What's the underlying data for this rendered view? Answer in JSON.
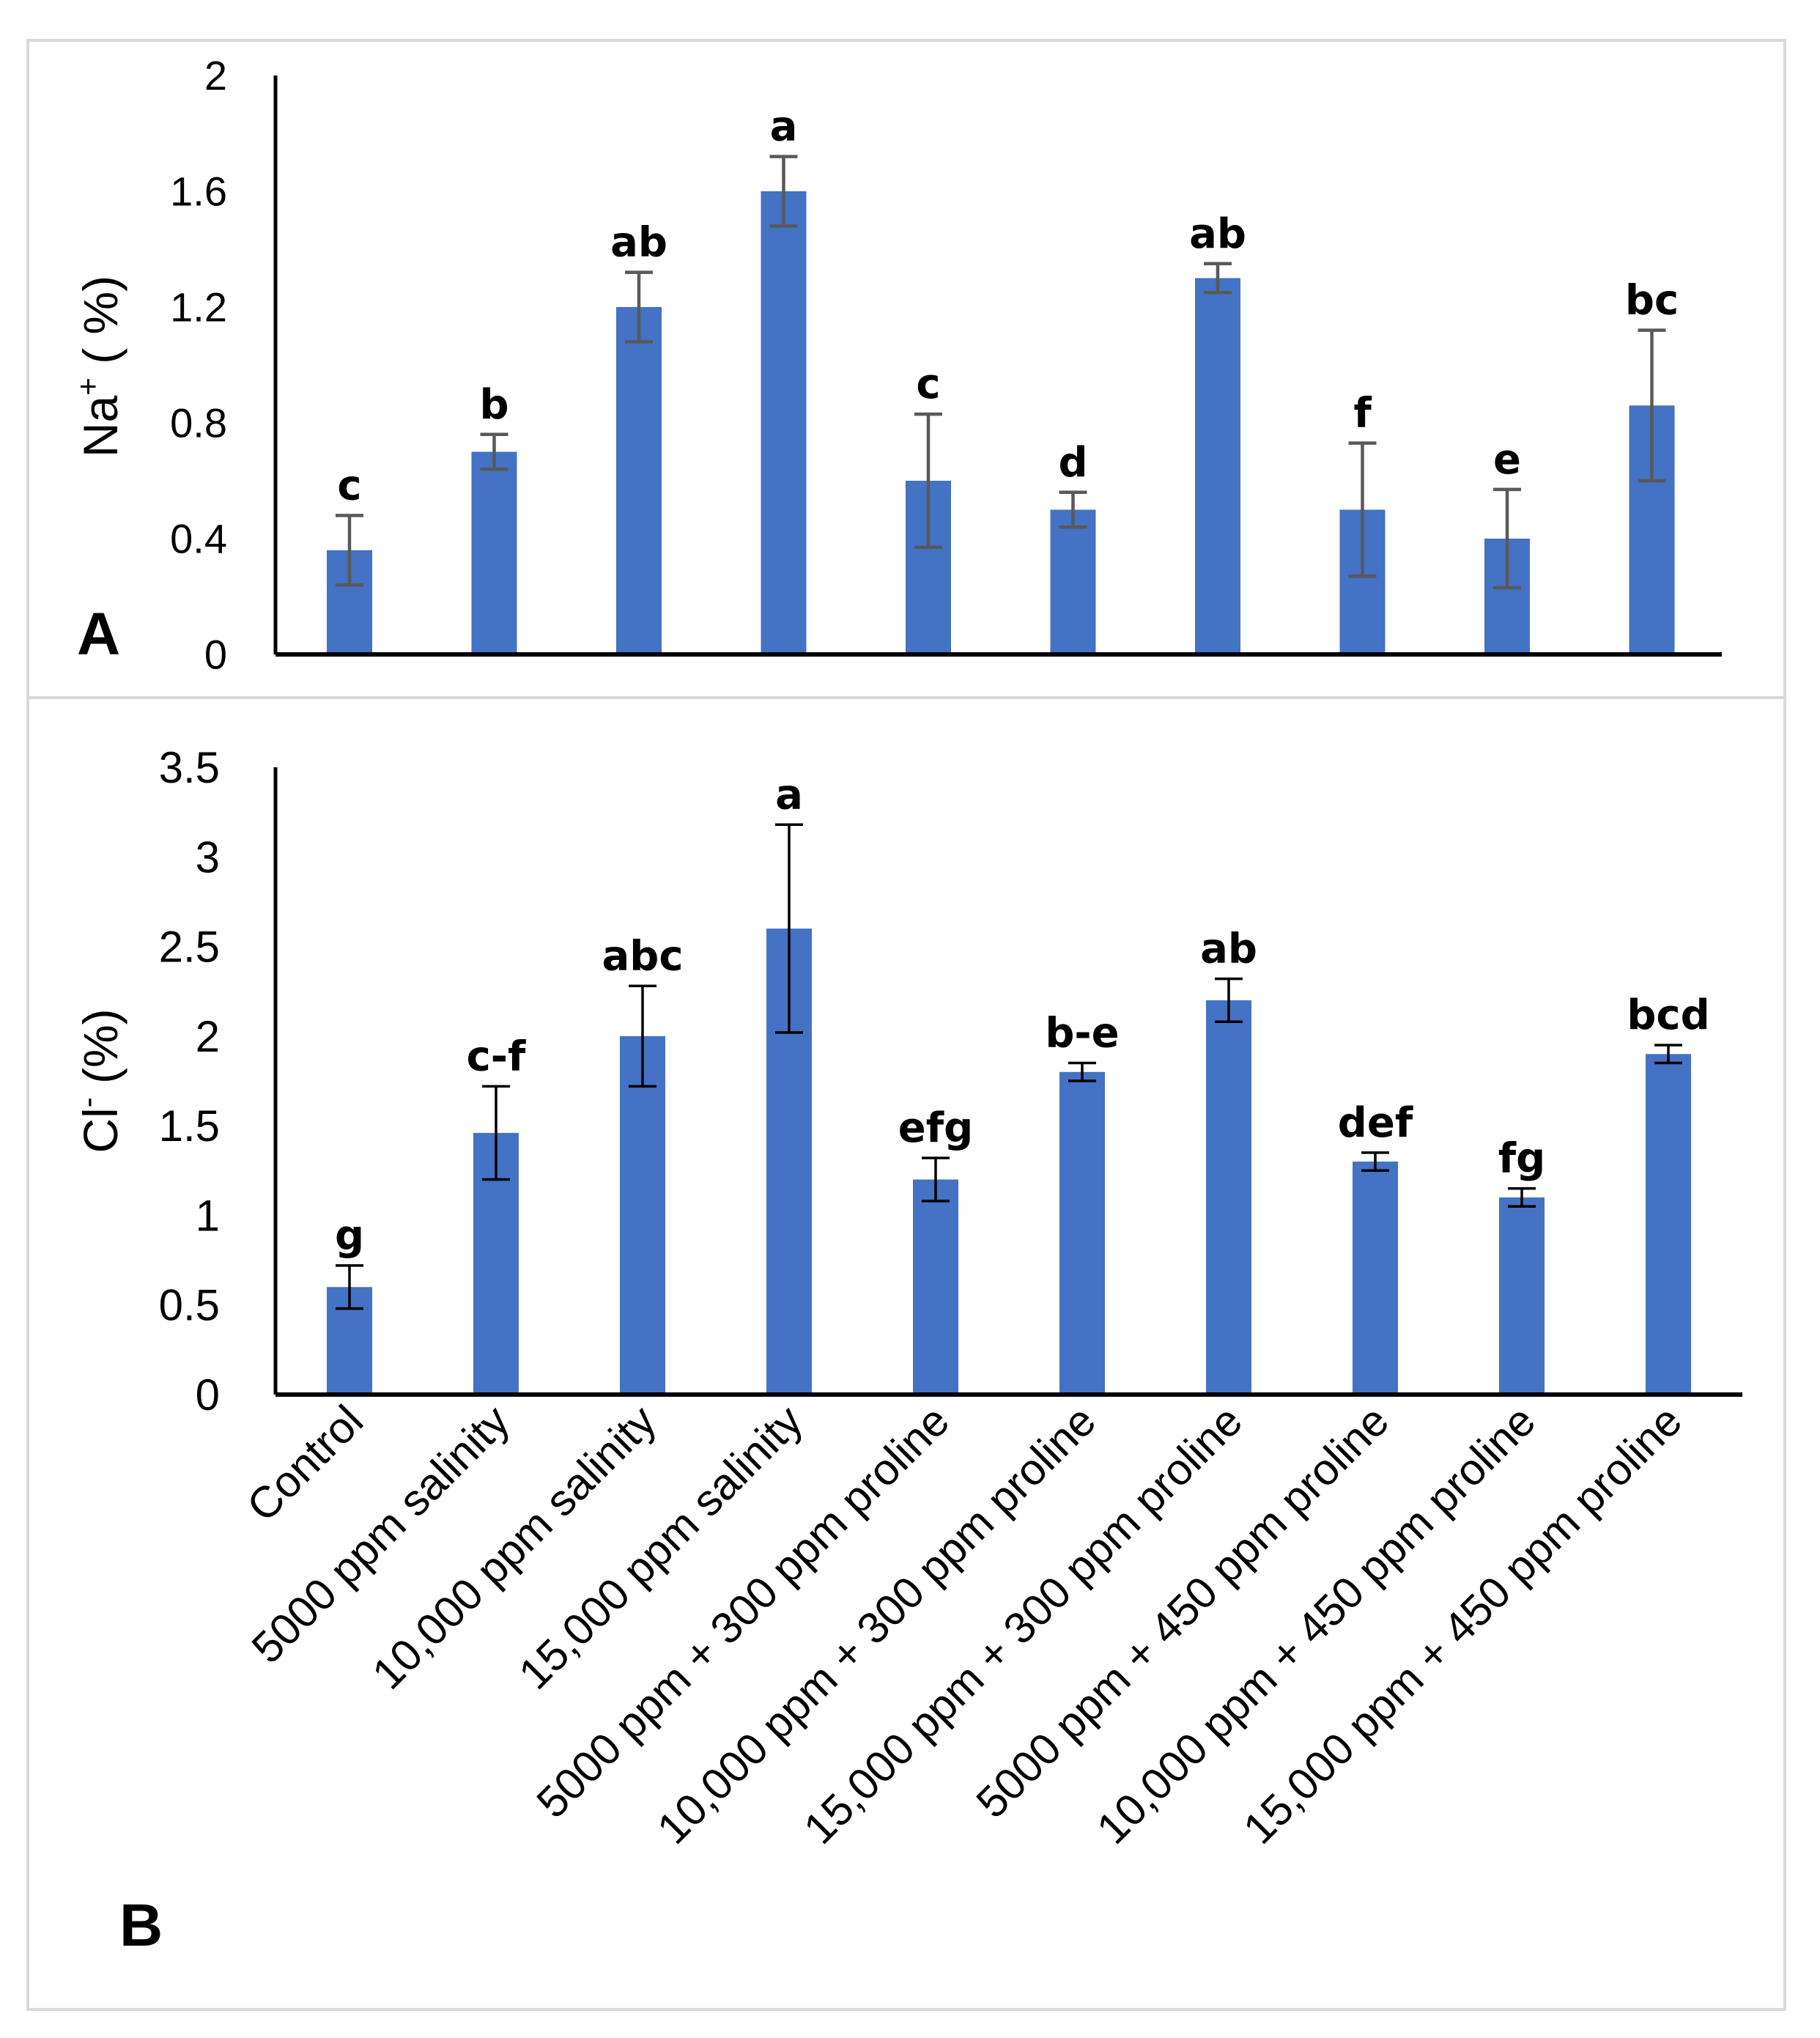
{
  "chart_data": [
    {
      "type": "bar",
      "panel_label": "A",
      "title": "",
      "ylabel_main": "Na",
      "ylabel_sup": "+",
      "ylabel_rest": " ( %)",
      "ylim": [
        0,
        2
      ],
      "yticks": [
        "0",
        "0.4",
        "0.8",
        "1.2",
        "1.6",
        "2"
      ],
      "ytick_values": [
        0,
        0.4,
        0.8,
        1.2,
        1.6,
        2
      ],
      "bar_color": "#4472C4",
      "error_color": "#595959",
      "values": [
        0.36,
        0.7,
        1.2,
        1.6,
        0.6,
        0.5,
        1.3,
        0.5,
        0.4,
        0.86
      ],
      "errors": [
        0.12,
        0.06,
        0.12,
        0.12,
        0.23,
        0.06,
        0.05,
        0.23,
        0.17,
        0.26
      ],
      "letters": [
        "c",
        "b",
        "ab",
        "a",
        "c",
        "d",
        "ab",
        "f",
        "e",
        "bc"
      ]
    },
    {
      "type": "bar",
      "panel_label": "B",
      "title": "",
      "ylabel_main": "Cl",
      "ylabel_sup": "-",
      "ylabel_rest": " (%)",
      "ylim": [
        0,
        3.5
      ],
      "yticks": [
        "0",
        "0.5",
        "1",
        "1.5",
        "2",
        "2.5",
        "3",
        "3.5"
      ],
      "ytick_values": [
        0,
        0.5,
        1,
        1.5,
        2,
        2.5,
        3,
        3.5
      ],
      "bar_color": "#4472C4",
      "error_color": "#000000",
      "values": [
        0.6,
        1.46,
        2.0,
        2.6,
        1.2,
        1.8,
        2.2,
        1.3,
        1.1,
        1.9
      ],
      "errors": [
        0.12,
        0.26,
        0.28,
        0.58,
        0.12,
        0.05,
        0.12,
        0.05,
        0.05,
        0.05
      ],
      "letters": [
        "g",
        "c-f",
        "abc",
        "a",
        "efg",
        "b-e",
        "ab",
        "def",
        "fg",
        "bcd"
      ],
      "categories": [
        "Control",
        "5000 ppm salinity",
        "10,000 ppm salinity",
        "15,000 ppm salinity",
        "5000 ppm + 300 ppm proline",
        "10,000 ppm + 300 ppm proline",
        "15,000 ppm + 300 ppm proline",
        "5000 ppm + 450 ppm proline",
        "10,000 ppm + 450 ppm proline",
        "15,000 ppm + 450 ppm proline"
      ]
    }
  ]
}
